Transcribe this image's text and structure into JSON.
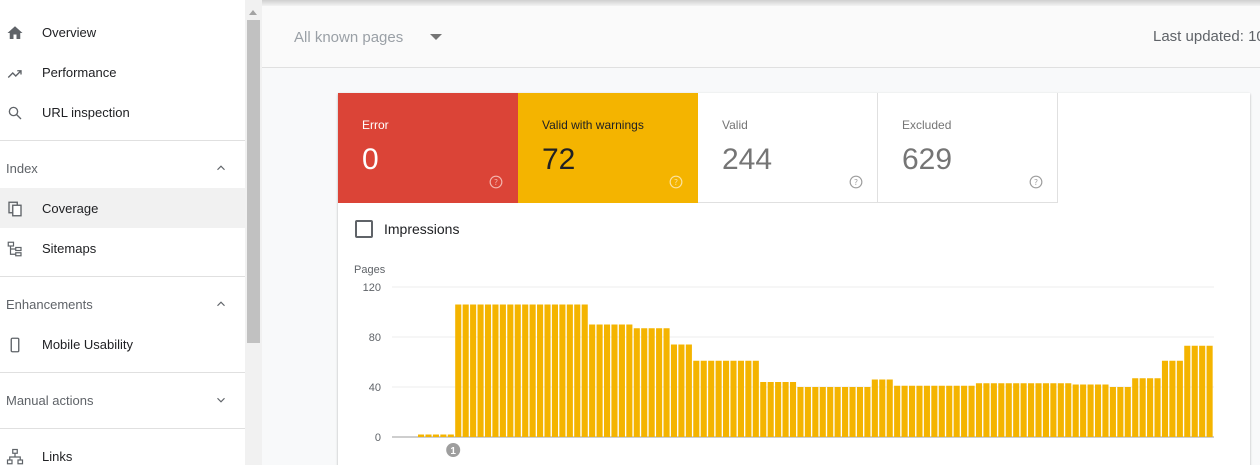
{
  "sidebar": {
    "items": [
      {
        "label": "Overview",
        "icon": "home-icon"
      },
      {
        "label": "Performance",
        "icon": "trending-up-icon"
      },
      {
        "label": "URL inspection",
        "icon": "search-icon"
      }
    ],
    "sections": [
      {
        "label": "Index",
        "expanded": true,
        "items": [
          {
            "label": "Coverage",
            "icon": "coverage-icon",
            "active": true
          },
          {
            "label": "Sitemaps",
            "icon": "sitemap-icon"
          }
        ]
      },
      {
        "label": "Enhancements",
        "expanded": true,
        "items": [
          {
            "label": "Mobile Usability",
            "icon": "phone-icon"
          }
        ]
      },
      {
        "label": "Manual actions",
        "expanded": false,
        "items": []
      }
    ],
    "bottom_item": {
      "label": "Links",
      "icon": "links-icon"
    }
  },
  "topbar": {
    "filter": "All known pages",
    "last_updated": "Last updated: 10"
  },
  "tiles": [
    {
      "label": "Error",
      "value": "0",
      "color": "#db4437"
    },
    {
      "label": "Valid with warnings",
      "value": "72",
      "color": "#f4b400"
    },
    {
      "label": "Valid",
      "value": "244",
      "color": "#ffffff"
    },
    {
      "label": "Excluded",
      "value": "629",
      "color": "#ffffff"
    }
  ],
  "impressions": {
    "label": "Impressions",
    "checked": false
  },
  "chart_data": {
    "type": "bar",
    "ylabel": "Pages",
    "ylim": [
      0,
      120
    ],
    "yticks": [
      0,
      40,
      80,
      120
    ],
    "color": "#f4b400",
    "annotation": "1",
    "annotation_index": 5,
    "values": [
      2,
      2,
      2,
      2,
      2,
      106,
      106,
      106,
      106,
      106,
      106,
      106,
      106,
      106,
      106,
      106,
      106,
      106,
      106,
      106,
      106,
      106,
      106,
      90,
      90,
      90,
      90,
      90,
      90,
      87,
      87,
      87,
      87,
      87,
      74,
      74,
      74,
      61,
      61,
      61,
      61,
      61,
      61,
      61,
      61,
      61,
      44,
      44,
      44,
      44,
      44,
      40,
      40,
      40,
      40,
      40,
      40,
      40,
      40,
      40,
      40,
      46,
      46,
      46,
      41,
      41,
      41,
      41,
      41,
      41,
      41,
      41,
      41,
      41,
      41,
      43,
      43,
      43,
      43,
      43,
      43,
      43,
      43,
      43,
      43,
      43,
      43,
      43,
      42,
      42,
      42,
      42,
      42,
      40,
      40,
      40,
      47,
      47,
      47,
      47,
      61,
      61,
      61,
      73,
      73,
      73,
      73
    ]
  }
}
